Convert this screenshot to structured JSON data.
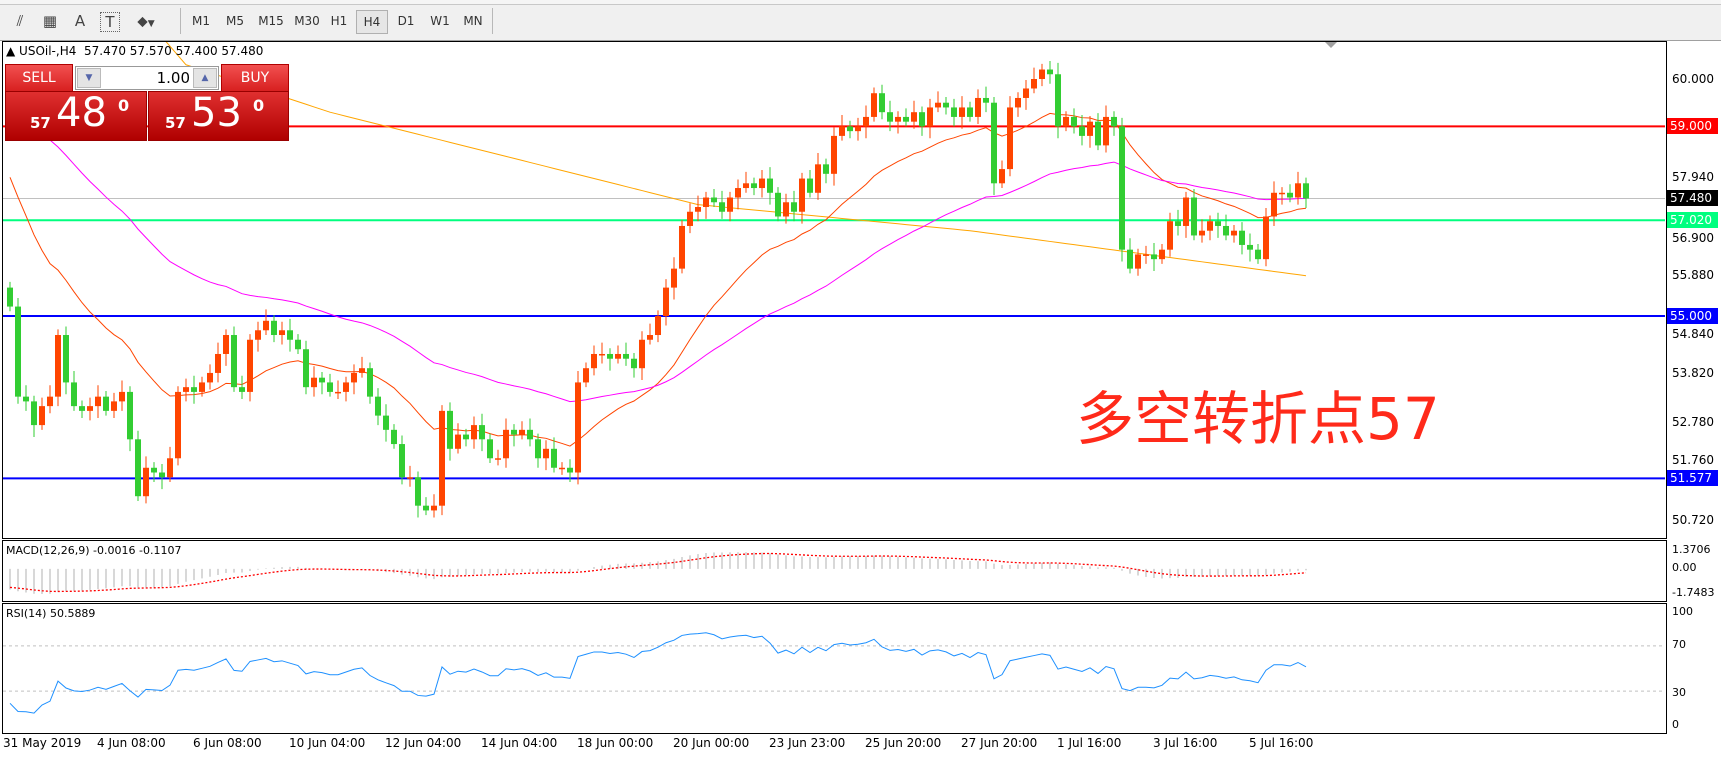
{
  "toolbar": {
    "icons": [
      "elliott-wave-icon",
      "fibonacci-icon",
      "text-icon",
      "text-label-icon",
      "arrows-icon"
    ],
    "icon_glyphs": [
      "⫽",
      "▦",
      "A",
      "T",
      "⬥"
    ],
    "timeframes": [
      "M1",
      "M5",
      "M15",
      "M30",
      "H1",
      "H4",
      "D1",
      "W1",
      "MN"
    ],
    "active_timeframe": "H4"
  },
  "chart": {
    "title": "USOil-,H4  57.470 57.570 57.400 57.480",
    "symbol": "USOil-",
    "annotation": "多空转折点57",
    "price_ticks": [
      "60.000",
      "57.940",
      "56.900",
      "55.880",
      "54.840",
      "53.820",
      "52.780",
      "51.760",
      "50.720"
    ],
    "levels": [
      {
        "price": 59.0,
        "label": "59.000",
        "color": "#ff0000"
      },
      {
        "price": 57.48,
        "label": "57.480",
        "color": "#000000",
        "line": "#c0c0c0"
      },
      {
        "price": 57.02,
        "label": "57.020",
        "color": "#00ff7f"
      },
      {
        "price": 55.0,
        "label": "55.000",
        "color": "#0000ff"
      },
      {
        "price": 51.577,
        "label": "51.577",
        "color": "#0000ff"
      }
    ],
    "time_labels": [
      "31 May 2019",
      "4 Jun 08:00",
      "6 Jun 08:00",
      "10 Jun 04:00",
      "12 Jun 04:00",
      "14 Jun 04:00",
      "18 Jun 00:00",
      "20 Jun 00:00",
      "23 Jun 23:00",
      "25 Jun 20:00",
      "27 Jun 20:00",
      "1 Jul 16:00",
      "3 Jul 16:00",
      "5 Jul 16:00"
    ],
    "colors": {
      "up": "#ff4500",
      "down": "#32cd32",
      "ma_fast": "#ff4500",
      "ma_mid": "#ff00ff",
      "ma_slow": "#ffa500"
    }
  },
  "trade_panel": {
    "sell_label": "SELL",
    "buy_label": "BUY",
    "lot": "1.00",
    "sell_price": {
      "prefix": "57",
      "main": "48",
      "sup": "0"
    },
    "buy_price": {
      "prefix": "57",
      "main": "53",
      "sup": "0"
    }
  },
  "chart_data": {
    "type": "candlestick",
    "first_open": 55.6,
    "close": [
      55.2,
      53.3,
      53.2,
      52.7,
      53.1,
      53.3,
      54.6,
      53.6,
      53.1,
      53.0,
      53.1,
      53.3,
      53.0,
      53.2,
      53.4,
      52.4,
      51.2,
      51.8,
      51.7,
      51.6,
      52.0,
      53.4,
      53.5,
      53.4,
      53.6,
      53.8,
      54.2,
      54.6,
      53.5,
      53.4,
      54.5,
      54.7,
      54.9,
      54.6,
      54.7,
      54.5,
      54.3,
      53.5,
      53.7,
      53.6,
      53.4,
      53.4,
      53.6,
      53.8,
      53.9,
      53.3,
      52.9,
      52.6,
      52.3,
      51.6,
      51.6,
      51.0,
      50.9,
      51.0,
      53.0,
      52.2,
      52.5,
      52.4,
      52.7,
      52.4,
      52.0,
      52.0,
      52.6,
      52.5,
      52.6,
      52.4,
      52.0,
      52.2,
      51.8,
      51.8,
      51.7,
      53.6,
      53.9,
      54.2,
      54.2,
      54.1,
      54.2,
      54.1,
      53.9,
      54.5,
      54.6,
      55.0,
      55.6,
      56.0,
      56.9,
      57.2,
      57.3,
      57.5,
      57.4,
      57.2,
      57.5,
      57.7,
      57.8,
      57.7,
      57.9,
      57.6,
      57.1,
      57.4,
      57.2,
      57.9,
      57.6,
      58.2,
      58.0,
      58.8,
      59.0,
      58.9,
      59.0,
      59.2,
      59.7,
      59.3,
      59.1,
      59.2,
      59.1,
      59.3,
      59.0,
      59.4,
      59.5,
      59.4,
      59.2,
      59.4,
      59.2,
      59.6,
      59.5,
      57.8,
      58.1,
      59.4,
      59.6,
      59.8,
      60.0,
      60.2,
      60.1,
      59.0,
      59.2,
      59.0,
      58.8,
      59.1,
      58.6,
      59.2,
      59.0,
      56.4,
      56.0,
      56.3,
      56.3,
      56.2,
      56.4,
      57.0,
      56.9,
      57.5,
      56.7,
      56.8,
      57.0,
      56.9,
      56.7,
      56.8,
      56.5,
      56.4,
      56.2,
      57.1,
      57.6,
      57.6,
      57.5,
      57.8,
      57.48
    ],
    "ma_fast": {
      "start": 58.2,
      "period": 21
    },
    "ma_mid": {
      "start": 60.0,
      "period": 55
    },
    "ma_slow_points": [
      [
        22,
        60.3
      ],
      [
        40,
        59.3
      ],
      [
        86,
        57.35
      ],
      [
        120,
        56.8
      ],
      [
        162,
        55.85
      ]
    ],
    "ylim": [
      50.4,
      60.8
    ],
    "macd": {
      "label": "MACD(12,26,9) -0.0016 -0.1107",
      "ticks": [
        "1.3706",
        "0.00",
        "-1.7483"
      ],
      "range": [
        -1.7483,
        1.3706
      ]
    },
    "rsi": {
      "label": "RSI(14) 50.5889",
      "ticks": [
        "100",
        "70",
        "30",
        "0"
      ],
      "levels": [
        70,
        30
      ],
      "color": "#1e90ff"
    }
  }
}
